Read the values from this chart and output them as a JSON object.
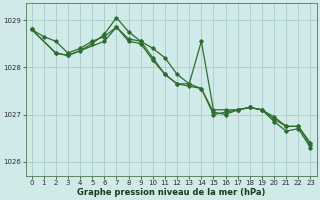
{
  "title": "Graphe pression niveau de la mer (hPa)",
  "bg_color": "#d0eaea",
  "grid_color": "#aacccc",
  "line_color": "#2d6e2d",
  "spine_color": "#4a7a4a",
  "xlim": [
    -0.5,
    23.5
  ],
  "ylim": [
    1025.7,
    1029.35
  ],
  "yticks": [
    1026,
    1027,
    1028,
    1029
  ],
  "xticks": [
    0,
    1,
    2,
    3,
    4,
    5,
    6,
    7,
    8,
    9,
    10,
    11,
    12,
    13,
    14,
    15,
    16,
    17,
    18,
    19,
    20,
    21,
    22,
    23
  ],
  "line1_x": [
    0,
    1,
    2,
    3,
    4,
    5,
    6,
    7,
    8,
    9,
    10,
    11,
    12,
    13,
    14,
    15,
    16,
    17,
    18,
    19,
    20,
    21,
    22,
    23
  ],
  "line1_y": [
    1028.8,
    1028.65,
    1028.55,
    1028.3,
    1028.4,
    1028.55,
    1028.65,
    1028.85,
    1028.6,
    1028.55,
    1028.4,
    1028.2,
    1027.85,
    1027.65,
    1027.55,
    1027.05,
    1027.0,
    1027.1,
    1027.15,
    1027.1,
    1026.95,
    1026.75,
    1026.75,
    1026.4
  ],
  "line2_x": [
    0,
    2,
    3,
    4,
    5,
    6,
    7,
    8,
    9,
    10,
    11,
    12,
    13,
    14,
    15,
    16,
    17,
    18,
    19,
    20,
    21,
    22,
    23
  ],
  "line2_y": [
    1028.8,
    1028.3,
    1028.25,
    1028.35,
    1028.5,
    1028.7,
    1029.05,
    1028.75,
    1028.55,
    1028.2,
    1027.85,
    1027.65,
    1027.65,
    1028.55,
    1027.1,
    1027.1,
    1027.1,
    1027.15,
    1027.1,
    1026.9,
    1026.75,
    1026.75,
    1026.35
  ],
  "line3_x": [
    0,
    2,
    3,
    6,
    7,
    8,
    9,
    10,
    11,
    12,
    13,
    14,
    15,
    16,
    17,
    18,
    19,
    20,
    21,
    22,
    23
  ],
  "line3_y": [
    1028.8,
    1028.3,
    1028.25,
    1028.55,
    1028.85,
    1028.55,
    1028.5,
    1028.15,
    1027.85,
    1027.65,
    1027.6,
    1027.55,
    1027.0,
    1027.05,
    1027.1,
    1027.15,
    1027.1,
    1026.85,
    1026.65,
    1026.7,
    1026.3
  ],
  "xlabel_fontsize": 6.0,
  "tick_fontsize": 5.0,
  "linewidth": 0.9,
  "markersize": 1.8
}
